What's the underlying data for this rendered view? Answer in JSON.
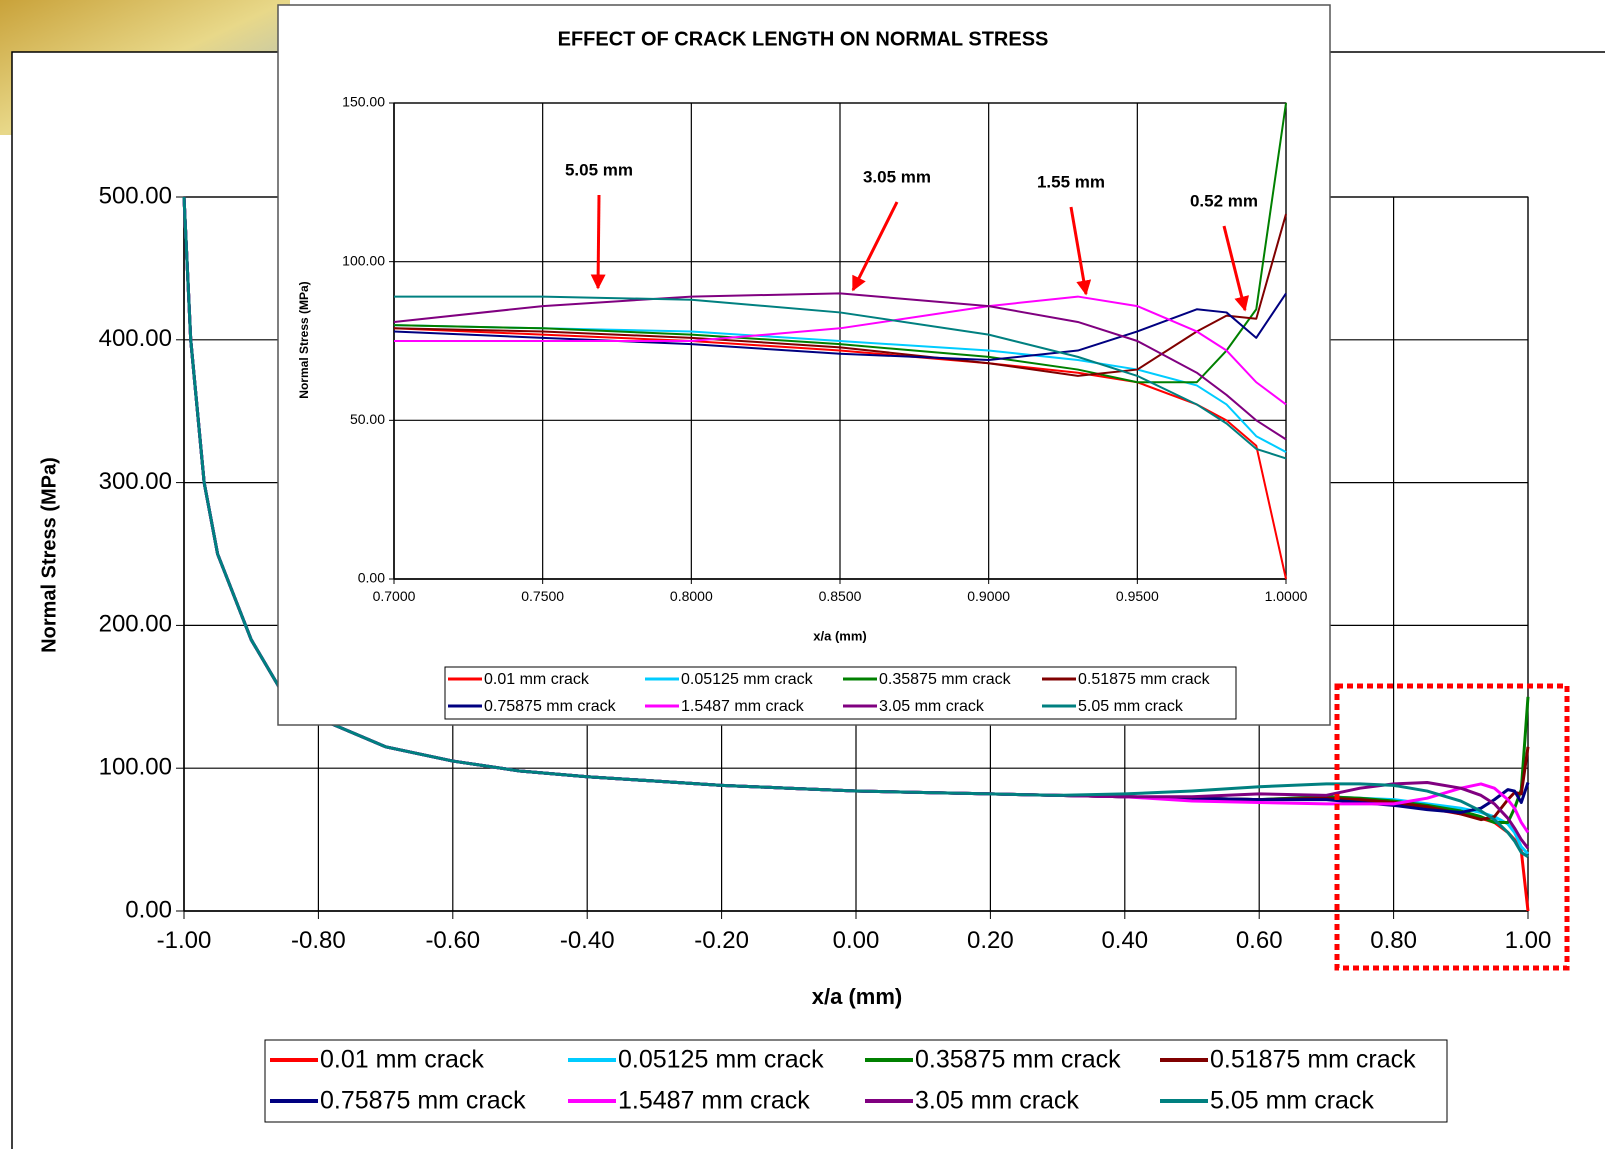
{
  "chart_data": [
    {
      "type": "line",
      "x_label": "x/a (mm)",
      "y_label": "Normal Stress (MPa)",
      "x": [
        -1,
        -0.99,
        -0.97,
        -0.95,
        -0.9,
        -0.85,
        -0.8,
        -0.7,
        -0.6,
        -0.5,
        -0.4,
        -0.3,
        -0.2,
        -0.1,
        0,
        0.1,
        0.2,
        0.3,
        0.4,
        0.5,
        0.6,
        0.7,
        0.75,
        0.8,
        0.85,
        0.9,
        0.93,
        0.95,
        0.97,
        0.98,
        0.99,
        1.0
      ],
      "xlim": [
        -1,
        1
      ],
      "xticks": [
        {
          "value": -1,
          "label": "-1.00"
        },
        {
          "value": -0.8,
          "label": "-0.80"
        },
        {
          "value": -0.6,
          "label": "-0.60"
        },
        {
          "value": -0.4,
          "label": "-0.40"
        },
        {
          "value": -0.2,
          "label": "-0.20"
        },
        {
          "value": 0,
          "label": "0.00"
        },
        {
          "value": 0.2,
          "label": "0.20"
        },
        {
          "value": 0.4,
          "label": "0.40"
        },
        {
          "value": 0.6,
          "label": "0.60"
        },
        {
          "value": 0.8,
          "label": "0.80"
        },
        {
          "value": 1,
          "label": "1.00"
        }
      ],
      "ylim": [
        0,
        500
      ],
      "yticks": [
        {
          "value": 0,
          "label": "0.00"
        },
        {
          "value": 100,
          "label": "100.00"
        },
        {
          "value": 200,
          "label": "200.00"
        },
        {
          "value": 300,
          "label": "300.00"
        },
        {
          "value": 400,
          "label": "400.00"
        },
        {
          "value": 500,
          "label": "500.00"
        }
      ],
      "grid": true,
      "series": [
        {
          "name": "0.01 mm crack",
          "color": "#ff0000",
          "values": [
            500,
            400,
            300,
            250,
            190,
            150,
            135,
            115,
            105,
            98,
            94,
            91,
            88,
            86,
            84,
            83,
            82,
            81,
            80,
            79,
            78,
            79,
            77,
            75,
            72,
            68,
            65,
            62,
            55,
            50,
            42,
            0
          ]
        },
        {
          "name": "0.05125 mm crack",
          "color": "#00ccff",
          "values": [
            500,
            400,
            300,
            250,
            190,
            150,
            135,
            115,
            105,
            98,
            94,
            91,
            88,
            86,
            84,
            83,
            82,
            81,
            80,
            79,
            78,
            80,
            79,
            78,
            75,
            72,
            69,
            66,
            61,
            55,
            45,
            40
          ]
        },
        {
          "name": "0.35875 mm crack",
          "color": "#008000",
          "values": [
            500,
            400,
            300,
            250,
            190,
            150,
            135,
            115,
            105,
            98,
            94,
            91,
            88,
            86,
            84,
            83,
            82,
            81,
            80,
            79,
            78,
            80,
            79,
            77,
            74,
            70,
            66,
            62,
            62,
            72,
            85,
            150
          ]
        },
        {
          "name": "0.51875 mm crack",
          "color": "#800000",
          "values": [
            500,
            400,
            300,
            250,
            190,
            150,
            135,
            115,
            105,
            98,
            94,
            91,
            88,
            86,
            84,
            83,
            82,
            81,
            80,
            79,
            78,
            79,
            78,
            76,
            73,
            68,
            64,
            66,
            78,
            83,
            82,
            115
          ]
        },
        {
          "name": "0.75875 mm crack",
          "color": "#000080",
          "values": [
            500,
            400,
            300,
            250,
            190,
            150,
            135,
            115,
            105,
            98,
            94,
            91,
            88,
            86,
            84,
            83,
            82,
            81,
            80,
            79,
            78,
            78,
            76,
            74,
            71,
            69,
            72,
            78,
            85,
            84,
            76,
            90
          ]
        },
        {
          "name": "1.5487 mm crack",
          "color": "#ff00ff",
          "values": [
            500,
            400,
            300,
            250,
            190,
            150,
            135,
            115,
            105,
            98,
            94,
            91,
            88,
            86,
            84,
            83,
            82,
            81,
            80,
            77,
            76,
            75,
            75,
            75,
            79,
            86,
            89,
            86,
            78,
            72,
            62,
            55
          ]
        },
        {
          "name": "3.05 mm crack",
          "color": "#800080",
          "values": [
            500,
            400,
            300,
            250,
            190,
            150,
            135,
            115,
            105,
            98,
            94,
            91,
            88,
            86,
            84,
            83,
            82,
            81,
            80,
            80,
            82,
            81,
            86,
            89,
            90,
            86,
            81,
            75,
            65,
            58,
            50,
            44
          ]
        },
        {
          "name": "5.05 mm crack",
          "color": "#008080",
          "values": [
            500,
            400,
            300,
            250,
            190,
            150,
            135,
            115,
            105,
            98,
            94,
            91,
            88,
            86,
            84,
            83,
            82,
            81,
            82,
            84,
            87,
            89,
            89,
            88,
            84,
            77,
            70,
            64,
            55,
            49,
            41,
            38
          ]
        }
      ]
    },
    {
      "type": "line",
      "title": "EFFECT OF CRACK LENGTH ON NORMAL STRESS",
      "x_label": "x/a (mm)",
      "y_label": "Normal Stress (MPa)",
      "x": [
        0.7,
        0.75,
        0.8,
        0.85,
        0.9,
        0.93,
        0.95,
        0.97,
        0.98,
        0.99,
        1.0
      ],
      "xlim": [
        0.7,
        1
      ],
      "xticks": [
        {
          "value": 0.7,
          "label": "0.7000"
        },
        {
          "value": 0.75,
          "label": "0.7500"
        },
        {
          "value": 0.8,
          "label": "0.8000"
        },
        {
          "value": 0.85,
          "label": "0.8500"
        },
        {
          "value": 0.9,
          "label": "0.9000"
        },
        {
          "value": 0.95,
          "label": "0.9500"
        },
        {
          "value": 1,
          "label": "1.0000"
        }
      ],
      "ylim": [
        0,
        150
      ],
      "yticks": [
        {
          "value": 0,
          "label": "0.00"
        },
        {
          "value": 50,
          "label": "50.00"
        },
        {
          "value": 100,
          "label": "100.00"
        },
        {
          "value": 150,
          "label": "150.00"
        }
      ],
      "grid": true,
      "annotations": [
        {
          "text": "5.05 mm"
        },
        {
          "text": "3.05 mm"
        },
        {
          "text": "1.55 mm"
        },
        {
          "text": "0.52 mm"
        }
      ],
      "series": [
        {
          "name": "0.01 mm crack",
          "color": "#ff0000",
          "values": [
            79,
            77,
            75,
            72,
            68,
            65,
            62,
            55,
            50,
            42,
            0
          ]
        },
        {
          "name": "0.05125 mm crack",
          "color": "#00ccff",
          "values": [
            80,
            79,
            78,
            75,
            72,
            69,
            66,
            61,
            55,
            45,
            40
          ]
        },
        {
          "name": "0.35875 mm crack",
          "color": "#008000",
          "values": [
            80,
            79,
            77,
            74,
            70,
            66,
            62,
            62,
            72,
            85,
            150
          ]
        },
        {
          "name": "0.51875 mm crack",
          "color": "#800000",
          "values": [
            79,
            78,
            76,
            73,
            68,
            64,
            66,
            78,
            83,
            82,
            115
          ]
        },
        {
          "name": "0.75875 mm crack",
          "color": "#000080",
          "values": [
            78,
            76,
            74,
            71,
            69,
            72,
            78,
            85,
            84,
            76,
            90
          ]
        },
        {
          "name": "1.5487 mm crack",
          "color": "#ff00ff",
          "values": [
            75,
            75,
            75,
            79,
            86,
            89,
            86,
            78,
            72,
            62,
            55
          ]
        },
        {
          "name": "3.05 mm crack",
          "color": "#800080",
          "values": [
            81,
            86,
            89,
            90,
            86,
            81,
            75,
            65,
            58,
            50,
            44
          ]
        },
        {
          "name": "5.05 mm crack",
          "color": "#008080",
          "values": [
            89,
            89,
            88,
            84,
            77,
            70,
            64,
            55,
            49,
            41,
            38
          ]
        }
      ]
    }
  ]
}
